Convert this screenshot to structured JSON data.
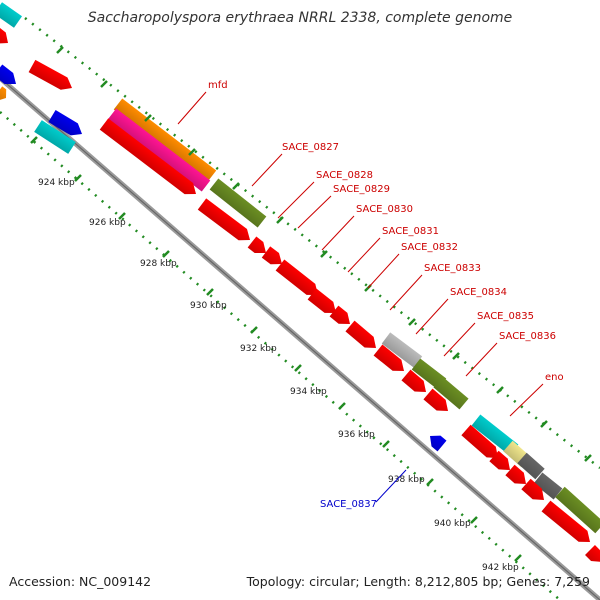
{
  "title": "Saccharopolyspora erythraea NRRL 2338, complete genome",
  "accession": "Accession: NC_009142",
  "topology": "Topology: circular; Length: 8,212,805 bp; Genes: 7,259",
  "colors": {
    "cds": "#ff0000",
    "rrna": "#ff8c00",
    "trna": "#ff1493",
    "cyan": "#00cccc",
    "olive": "#6b8e23",
    "blue": "#0000ee",
    "gray": "#bbbbbb",
    "dark": "#666666",
    "yellow": "#f0e68c",
    "label_forward": "#cc0000",
    "label_reverse": "#0000cc",
    "tick": "#228b22",
    "backbone": "#999999"
  },
  "ruler_labels": [
    "924 kbp",
    "926 kbp",
    "928 kbp",
    "930 kbp",
    "932 kbp",
    "934 kbp",
    "936 kbp",
    "938 kbp",
    "940 kbp",
    "942 kbp"
  ],
  "gene_labels": [
    {
      "text": "mfd",
      "color": "red"
    },
    {
      "text": "SACE_0827",
      "color": "red"
    },
    {
      "text": "SACE_0828",
      "color": "red"
    },
    {
      "text": "SACE_0829",
      "color": "red"
    },
    {
      "text": "SACE_0830",
      "color": "red"
    },
    {
      "text": "SACE_0831",
      "color": "red"
    },
    {
      "text": "SACE_0832",
      "color": "red"
    },
    {
      "text": "SACE_0833",
      "color": "red"
    },
    {
      "text": "SACE_0834",
      "color": "red"
    },
    {
      "text": "SACE_0835",
      "color": "red"
    },
    {
      "text": "SACE_0836",
      "color": "red"
    },
    {
      "text": "eno",
      "color": "red"
    },
    {
      "text": "SACE_0837",
      "color": "blue"
    }
  ]
}
